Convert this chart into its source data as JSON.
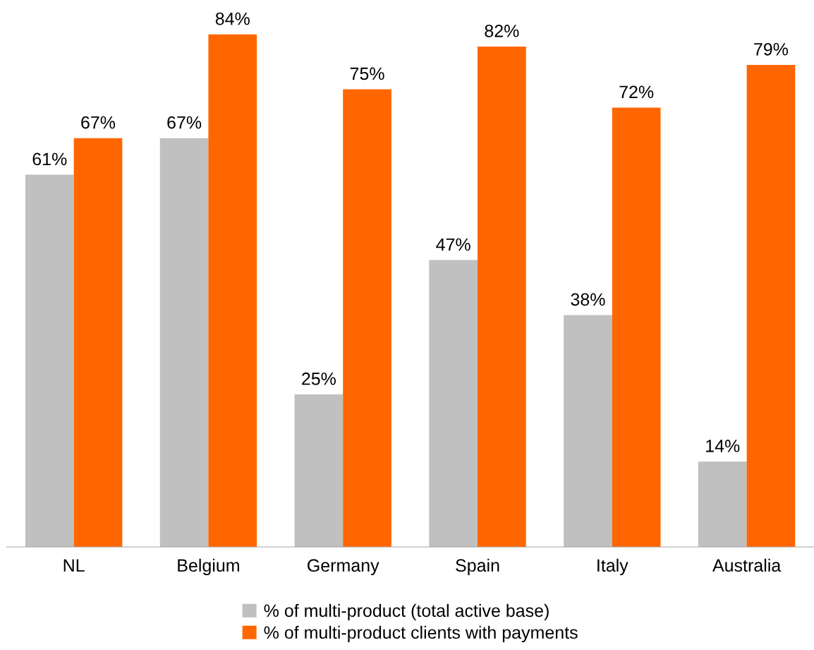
{
  "chart_data": {
    "type": "bar",
    "categories": [
      "NL",
      "Belgium",
      "Germany",
      "Spain",
      "Italy",
      "Australia"
    ],
    "series": [
      {
        "name": "% of multi-product (total active base)",
        "color": "#c0c0c0",
        "values": [
          61,
          67,
          25,
          47,
          38,
          14
        ],
        "value_labels": [
          "61%",
          "67%",
          "25%",
          "47%",
          "38%",
          "14%"
        ]
      },
      {
        "name": "% of multi-product clients with payments",
        "color": "#ff6600",
        "values": [
          67,
          84,
          75,
          82,
          72,
          79
        ],
        "value_labels": [
          "67%",
          "84%",
          "75%",
          "82%",
          "72%",
          "79%"
        ]
      }
    ],
    "tick_labels": "x",
    "legend": "bottom",
    "grid": false
  }
}
